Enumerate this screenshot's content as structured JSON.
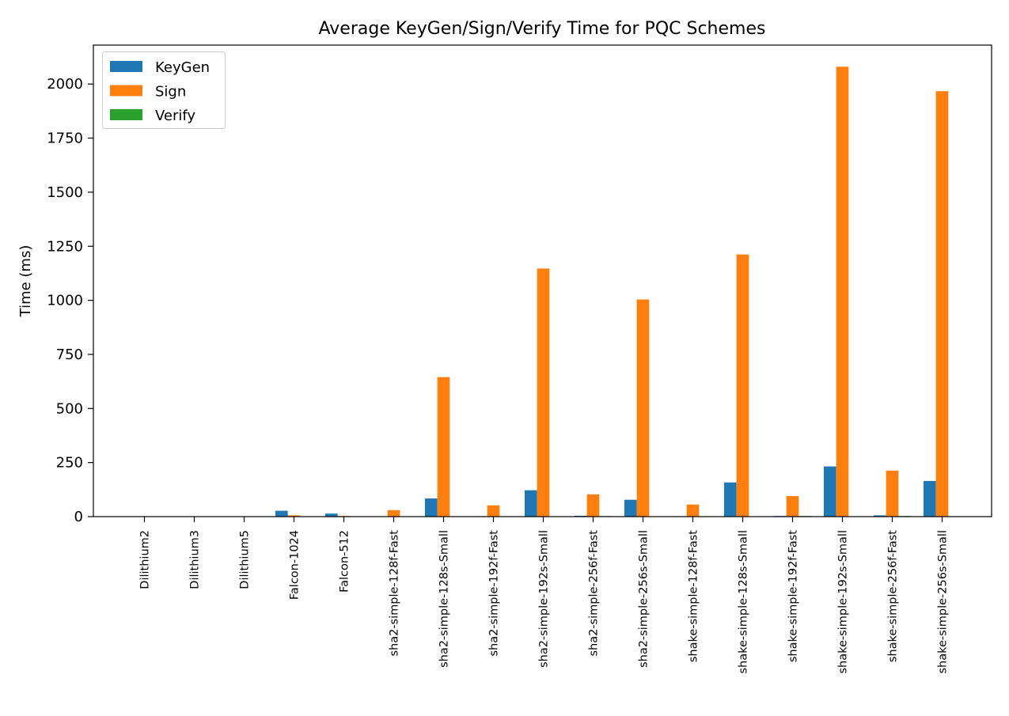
{
  "chart_data": {
    "type": "bar",
    "title": "Average KeyGen/Sign/Verify Time for PQC Schemes",
    "xlabel": "",
    "ylabel": "Time (ms)",
    "ylim": [
      0,
      2180
    ],
    "yticks": [
      0,
      250,
      500,
      750,
      1000,
      1250,
      1500,
      1750,
      2000
    ],
    "grid": false,
    "legend_position": "upper-left",
    "categories": [
      "Dilithium2",
      "Dilithium3",
      "Dilithium5",
      "Falcon-1024",
      "Falcon-512",
      "sha2-simple-128f-Fast",
      "sha2-simple-128s-Small",
      "sha2-simple-192f-Fast",
      "sha2-simple-192s-Small",
      "sha2-simple-256f-Fast",
      "sha2-simple-256s-Small",
      "shake-simple-128f-Fast",
      "shake-simple-128s-Small",
      "shake-simple-192f-Fast",
      "shake-simple-192s-Small",
      "shake-simple-256f-Fast",
      "shake-simple-256s-Small"
    ],
    "series": [
      {
        "name": "KeyGen",
        "color": "#1f77b4",
        "values": [
          0.1,
          0.2,
          0.3,
          27,
          14,
          1.5,
          84,
          2,
          122,
          4,
          78,
          2,
          158,
          3,
          232,
          6,
          165
        ]
      },
      {
        "name": "Sign",
        "color": "#ff7f0e",
        "values": [
          0.3,
          0.5,
          0.6,
          6,
          3,
          30,
          645,
          52,
          1147,
          103,
          1004,
          56,
          1212,
          95,
          2080,
          213,
          1967
        ]
      },
      {
        "name": "Verify",
        "color": "#2ca02c",
        "values": [
          0.1,
          0.1,
          0.2,
          0.2,
          0.1,
          1.5,
          0.5,
          2,
          1,
          2.5,
          1.5,
          2,
          1,
          3,
          1.5,
          3,
          2
        ]
      }
    ]
  }
}
